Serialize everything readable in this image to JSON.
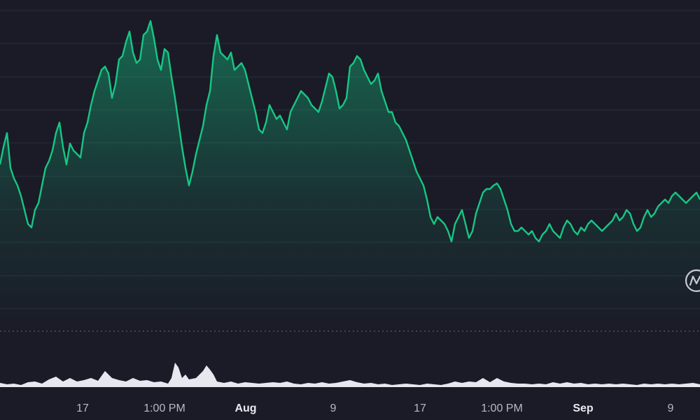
{
  "chart_data": {
    "type": "area",
    "title": "",
    "xlabel": "",
    "ylabel": "",
    "grid": true,
    "colors": {
      "background": "#1a1b27",
      "price_line": "#16c784",
      "fill_top": "#16c784",
      "volume": "#e6e8ef",
      "grid": "#2a2c3b"
    },
    "x_tick_labels": [
      {
        "label": "17",
        "bold": false
      },
      {
        "label": "1:00 PM",
        "bold": false
      },
      {
        "label": "Aug",
        "bold": true
      },
      {
        "label": "9",
        "bold": false
      },
      {
        "label": "17",
        "bold": false
      },
      {
        "label": "1:00 PM",
        "bold": false
      },
      {
        "label": "Sep",
        "bold": true
      },
      {
        "label": "9",
        "bold": false
      }
    ],
    "price_series": {
      "name": "",
      "x": [
        0,
        5,
        10,
        15,
        20,
        25,
        30,
        35,
        40,
        45,
        50,
        55,
        60,
        65,
        70,
        75,
        80,
        85,
        90,
        95,
        100,
        105,
        110,
        115,
        120,
        125,
        130,
        135,
        140,
        145,
        150,
        155,
        160,
        165,
        170,
        175,
        180,
        185,
        190,
        195,
        200,
        205,
        210,
        215,
        220,
        225,
        230,
        235,
        240,
        245,
        250,
        255,
        260,
        265,
        270,
        275,
        280,
        285,
        290,
        295,
        300,
        305,
        310,
        315,
        320,
        325,
        330,
        335,
        340,
        345,
        350,
        355,
        360,
        365,
        370,
        375,
        380,
        385,
        390,
        395,
        400,
        405,
        410,
        415,
        420,
        425,
        430,
        435,
        440,
        445,
        450,
        455,
        460,
        465,
        470,
        475,
        480,
        485,
        490,
        495,
        500,
        505,
        510,
        515,
        520,
        525,
        530,
        535,
        540,
        545,
        550,
        555,
        560,
        565,
        570,
        575,
        580,
        585,
        590,
        595,
        600,
        605,
        610,
        615,
        620,
        625,
        630,
        635,
        640,
        645,
        650,
        655,
        660,
        665,
        670,
        675,
        680,
        685,
        690,
        695,
        700,
        705,
        710,
        715,
        720,
        725,
        730,
        735,
        740,
        745,
        750,
        755,
        760,
        765,
        770,
        775,
        780,
        785,
        790,
        795,
        800,
        805,
        810,
        815,
        820,
        825,
        830,
        835,
        840,
        845,
        850,
        855,
        860,
        865,
        870,
        875,
        880,
        885,
        890,
        895,
        900,
        905,
        910,
        915,
        920,
        925,
        930,
        935,
        940,
        945,
        950,
        955,
        960,
        965,
        970,
        975,
        980,
        985,
        990,
        995,
        1000
      ],
      "y": [
        235,
        210,
        190,
        240,
        255,
        265,
        280,
        300,
        320,
        325,
        300,
        290,
        265,
        240,
        230,
        215,
        190,
        175,
        210,
        235,
        205,
        215,
        220,
        225,
        190,
        175,
        150,
        130,
        115,
        100,
        95,
        105,
        140,
        120,
        85,
        80,
        60,
        45,
        75,
        90,
        85,
        50,
        45,
        30,
        55,
        85,
        100,
        70,
        75,
        110,
        140,
        175,
        210,
        240,
        265,
        245,
        220,
        200,
        180,
        150,
        130,
        80,
        50,
        75,
        80,
        85,
        75,
        100,
        95,
        90,
        100,
        120,
        140,
        160,
        185,
        190,
        175,
        150,
        160,
        170,
        165,
        175,
        185,
        160,
        150,
        140,
        130,
        135,
        140,
        150,
        155,
        160,
        145,
        125,
        105,
        110,
        130,
        155,
        150,
        140,
        95,
        90,
        80,
        85,
        100,
        110,
        120,
        115,
        105,
        130,
        145,
        160,
        160,
        175,
        180,
        190,
        200,
        215,
        230,
        245,
        255,
        265,
        285,
        310,
        320,
        310,
        315,
        320,
        330,
        345,
        320,
        310,
        300,
        320,
        340,
        330,
        305,
        290,
        275,
        270,
        270,
        265,
        262,
        270,
        285,
        300,
        320,
        330,
        330,
        325,
        330,
        335,
        330,
        340,
        345,
        335,
        330,
        320,
        330,
        335,
        340,
        325,
        315,
        320,
        330,
        335,
        325,
        330,
        320,
        315,
        320,
        325,
        330,
        325,
        320,
        315,
        305,
        315,
        310,
        300,
        305,
        320,
        330,
        325,
        310,
        300,
        310,
        305,
        295,
        290,
        285,
        290,
        280,
        275,
        280,
        285,
        290,
        285,
        280,
        275,
        285
      ]
    },
    "volume_series": {
      "name": "",
      "x": [
        0,
        10,
        20,
        30,
        40,
        50,
        60,
        70,
        80,
        90,
        100,
        110,
        120,
        130,
        140,
        150,
        160,
        170,
        180,
        190,
        200,
        210,
        220,
        230,
        240,
        245,
        250,
        255,
        260,
        265,
        270,
        280,
        290,
        295,
        300,
        305,
        310,
        320,
        330,
        340,
        350,
        360,
        370,
        380,
        390,
        400,
        410,
        420,
        430,
        440,
        450,
        460,
        470,
        480,
        490,
        500,
        510,
        520,
        530,
        540,
        550,
        560,
        570,
        580,
        590,
        600,
        610,
        620,
        630,
        640,
        650,
        660,
        670,
        680,
        690,
        700,
        710,
        720,
        730,
        740,
        750,
        760,
        770,
        780,
        790,
        800,
        810,
        820,
        830,
        840,
        850,
        860,
        870,
        880,
        890,
        900,
        910,
        920,
        930,
        940,
        950,
        960,
        970,
        980,
        990,
        1000
      ],
      "y": [
        547,
        549,
        548,
        550,
        546,
        545,
        548,
        542,
        538,
        545,
        540,
        545,
        543,
        540,
        544,
        530,
        540,
        543,
        545,
        540,
        544,
        543,
        546,
        545,
        548,
        540,
        518,
        525,
        540,
        535,
        542,
        540,
        530,
        522,
        528,
        535,
        545,
        547,
        545,
        548,
        546,
        547,
        548,
        547,
        546,
        547,
        545,
        548,
        549,
        547,
        548,
        546,
        548,
        547,
        545,
        543,
        546,
        548,
        547,
        549,
        548,
        550,
        549,
        548,
        549,
        550,
        548,
        549,
        550,
        548,
        545,
        547,
        545,
        546,
        540,
        546,
        540,
        545,
        547,
        548,
        548,
        549,
        548,
        549,
        546,
        548,
        546,
        548,
        547,
        549,
        548,
        549,
        548,
        549,
        548,
        549,
        550,
        548,
        549,
        548,
        549,
        548,
        549,
        548,
        547,
        549
      ]
    }
  },
  "watermark": {
    "icon": "coinmarketcap-logo-icon"
  }
}
